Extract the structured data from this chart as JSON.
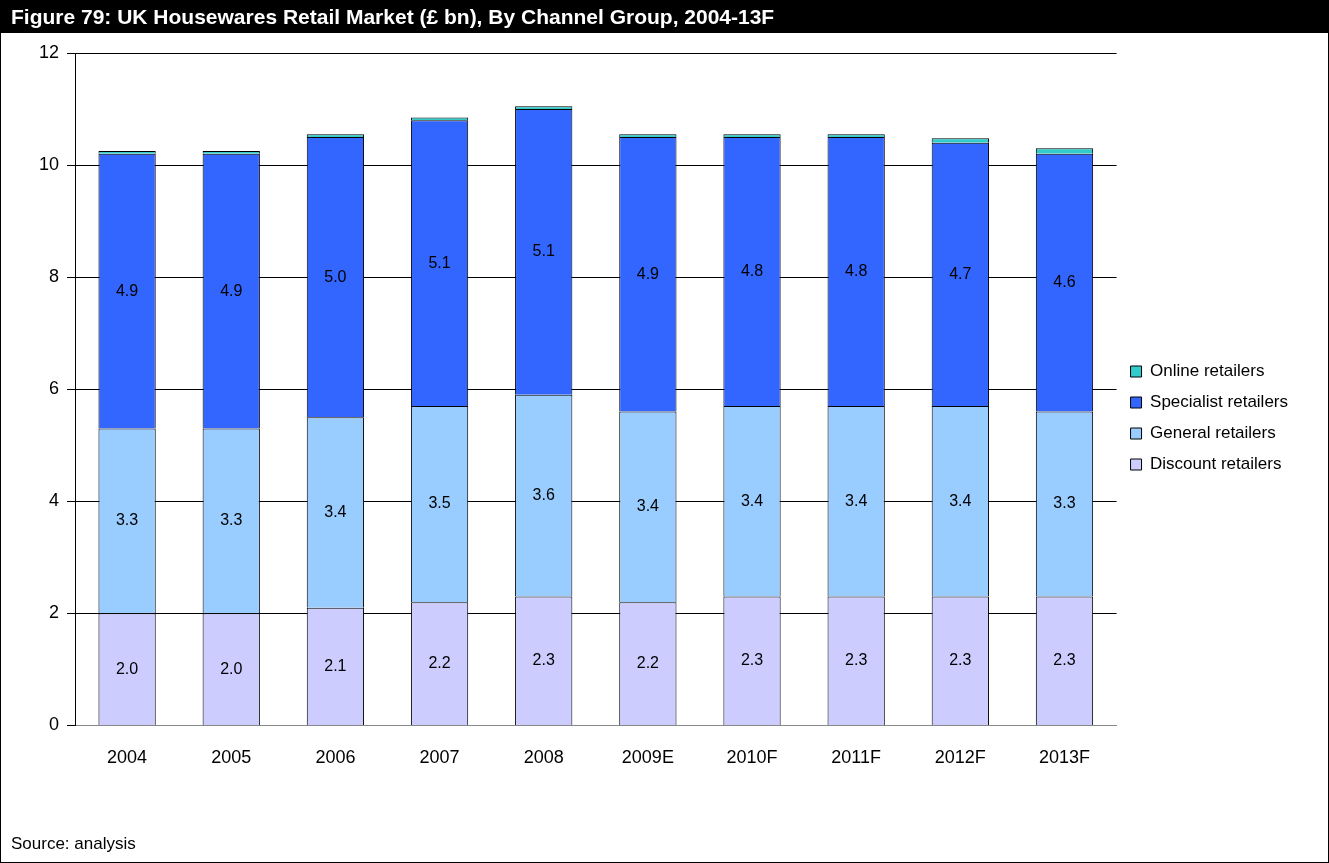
{
  "chart_data": {
    "type": "bar",
    "title": "Figure 79: UK Housewares Retail Market (£ bn), By Channel Group, 2004-13F",
    "categories": [
      "2004",
      "2005",
      "2006",
      "2007",
      "2008",
      "2009E",
      "2010F",
      "2011F",
      "2012F",
      "2013F"
    ],
    "stacked": true,
    "series": [
      {
        "name": "Discount retailers",
        "color": "#ccccff",
        "values": [
          2.0,
          2.0,
          2.1,
          2.2,
          2.3,
          2.2,
          2.3,
          2.3,
          2.3,
          2.3
        ],
        "value_labels": [
          "2.0",
          "2.0",
          "2.1",
          "2.2",
          "2.3",
          "2.2",
          "2.3",
          "2.3",
          "2.3",
          "2.3"
        ]
      },
      {
        "name": "General retailers",
        "color": "#99ccff",
        "values": [
          3.3,
          3.3,
          3.4,
          3.5,
          3.6,
          3.4,
          3.4,
          3.4,
          3.4,
          3.3
        ],
        "value_labels": [
          "3.3",
          "3.3",
          "3.4",
          "3.5",
          "3.6",
          "3.4",
          "3.4",
          "3.4",
          "3.4",
          "3.3"
        ]
      },
      {
        "name": "Specialist retailers",
        "color": "#3366ff",
        "values": [
          4.9,
          4.9,
          5.0,
          5.1,
          5.1,
          4.9,
          4.8,
          4.8,
          4.7,
          4.6
        ],
        "value_labels": [
          "4.9",
          "4.9",
          "5.0",
          "5.1",
          "5.1",
          "4.9",
          "4.8",
          "4.8",
          "4.7",
          "4.6"
        ]
      },
      {
        "name": "Online retailers",
        "color": "#33cccc",
        "values": [
          0.05,
          0.05,
          0.05,
          0.05,
          0.05,
          0.05,
          0.05,
          0.05,
          0.08,
          0.1
        ]
      }
    ],
    "ylim": [
      0,
      12
    ],
    "yticks": [
      0,
      2,
      4,
      6,
      8,
      10,
      12
    ],
    "grid": "y",
    "legend": "right",
    "annotations": [
      "Source: analysis"
    ]
  }
}
